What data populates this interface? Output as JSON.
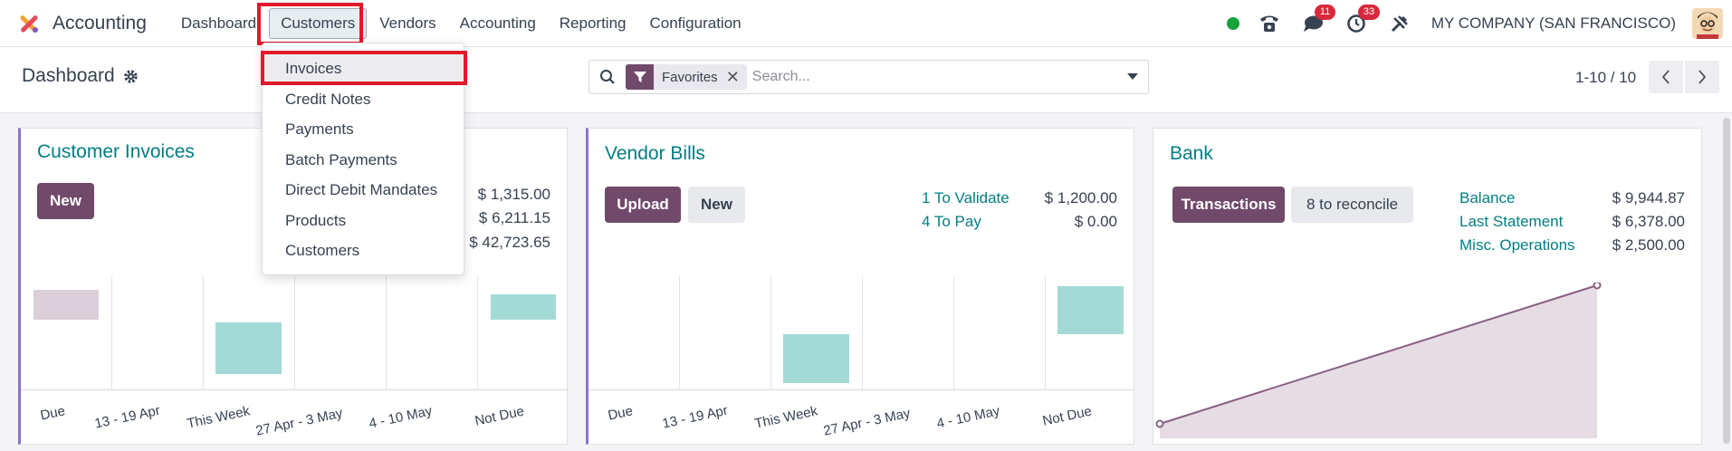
{
  "navbar": {
    "app_name": "Accounting",
    "menu": [
      "Dashboard",
      "Customers",
      "Vendors",
      "Accounting",
      "Reporting",
      "Configuration"
    ],
    "active_menu": "Customers",
    "messages_badge": "11",
    "activities_badge": "33",
    "company": "MY COMPANY (SAN FRANCISCO)",
    "status_color": "#14a33a"
  },
  "control": {
    "breadcrumb": "Dashboard",
    "facet_label": "Favorites",
    "search_placeholder": "Search...",
    "pager": "1-10 / 10"
  },
  "customers_menu": {
    "items": [
      "Invoices",
      "Credit Notes",
      "Payments",
      "Batch Payments",
      "Direct Debit Mandates",
      "Products",
      "Customers"
    ],
    "highlighted": "Invoices"
  },
  "cards": {
    "customer_invoices": {
      "title": "Customer Invoices",
      "new_label": "New",
      "values": [
        "$ 1,315.00",
        "$ 6,211.15",
        "$ 42,723.65"
      ],
      "x_labels": [
        "Due",
        "13 - 19 Apr",
        "This Week",
        "27 Apr - 3 May",
        "4 - 10 May",
        "Not Due"
      ]
    },
    "vendor_bills": {
      "title": "Vendor Bills",
      "upload_label": "Upload",
      "new_label": "New",
      "stats": [
        {
          "label": "1 To Validate",
          "value": "$ 1,200.00"
        },
        {
          "label": "4 To Pay",
          "value": "$ 0.00"
        }
      ],
      "x_labels": [
        "Due",
        "13 - 19 Apr",
        "This Week",
        "27 Apr - 3 May",
        "4 - 10 May",
        "Not Due"
      ]
    },
    "bank": {
      "title": "Bank",
      "transactions_label": "Transactions",
      "reconcile_label": "8 to reconcile",
      "stats": [
        {
          "label": "Balance",
          "value": "$ 9,944.87"
        },
        {
          "label": "Last Statement",
          "value": "$ 6,378.00"
        },
        {
          "label": "Misc. Operations",
          "value": "$ 2,500.00"
        }
      ]
    }
  },
  "colors": {
    "brand": "#71496b",
    "link": "#017e84",
    "bar_teal": "#a4dad6",
    "bar_past": "#dccfd9",
    "highlight": "#e0192b"
  }
}
